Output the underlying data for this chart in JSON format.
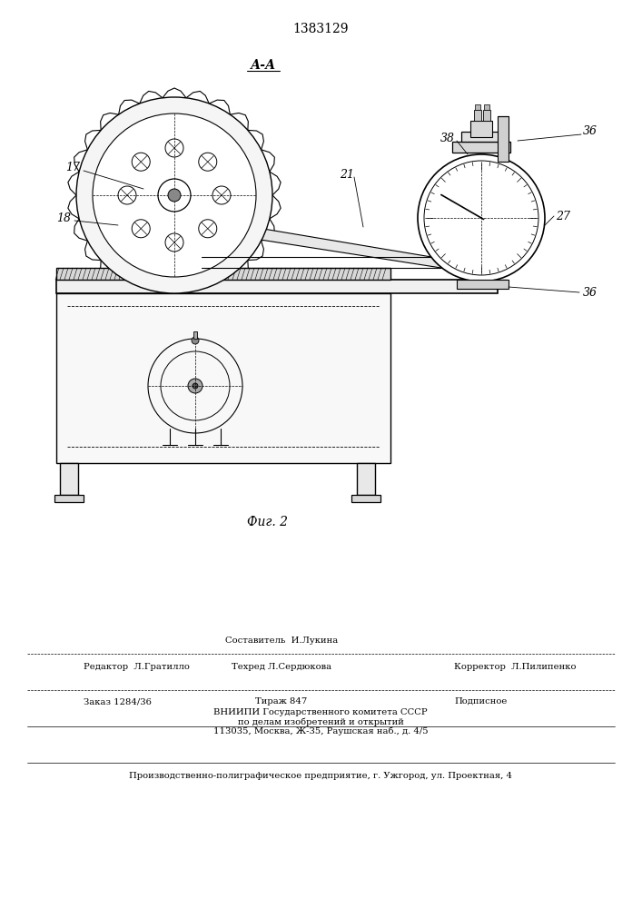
{
  "patent_number": "1383129",
  "fig_label": "Фиг. 2",
  "section_label": "А-А",
  "bg_color": "#ffffff",
  "line_color": "#000000",
  "footer": {
    "compiler": "Составитель  И.Лукина",
    "editor": "Редактор  Л.Гратилло",
    "techred": "Техред Л.Сердюкова",
    "corrector": "Корректор  Л.Пилипенко",
    "order": "Заказ 1284/36",
    "tirazh": "Тираж 847",
    "podpisnoe": "Подписное",
    "vniipii1": "ВНИИПИ Государственного комитета СССР",
    "vniipii2": "по делам изобретений и открытий",
    "vniipii3": "113035, Москва, Ж-35, Раушская наб., д. 4/5",
    "producer": "Производственно-полиграфическое предприятие, г. Ужгород, ул. Проектная, 4"
  }
}
